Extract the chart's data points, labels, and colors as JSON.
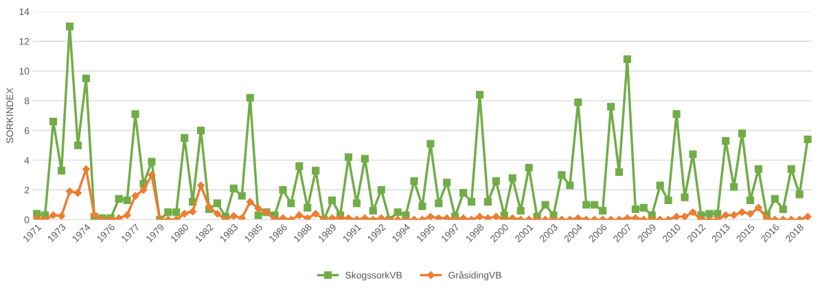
{
  "chart_data": {
    "type": "line",
    "ylabel": "SORKINDEX",
    "categories": [
      "1971",
      null,
      null,
      "1973",
      null,
      null,
      "1974",
      null,
      null,
      "1976",
      null,
      null,
      "1977",
      null,
      null,
      "1979",
      null,
      null,
      "1980",
      null,
      null,
      "1982",
      null,
      null,
      "1983",
      null,
      null,
      "1985",
      null,
      null,
      "1986",
      null,
      null,
      "1988",
      null,
      null,
      "1989",
      null,
      null,
      "1991",
      null,
      null,
      "1992",
      null,
      null,
      "1994",
      null,
      null,
      "1995",
      null,
      null,
      "1997",
      null,
      null,
      "1998",
      null,
      null,
      "2000",
      null,
      null,
      "2001",
      null,
      null,
      "2003",
      null,
      null,
      "2004",
      null,
      null,
      "2006",
      null,
      null,
      "2007",
      null,
      null,
      "2009",
      null,
      null,
      "2010",
      null,
      null,
      "2012",
      null,
      null,
      "2013",
      null,
      null,
      "2015",
      null,
      null,
      "2016",
      null,
      null,
      "2018",
      null
    ],
    "series": [
      {
        "name": "SkogssorkVB",
        "color": "#70ad47",
        "marker": "square",
        "values": [
          0.4,
          0.3,
          6.6,
          3.3,
          13.0,
          5.0,
          9.5,
          0.2,
          0.1,
          0.1,
          1.4,
          1.3,
          7.1,
          2.4,
          3.9,
          0.0,
          0.5,
          0.5,
          5.5,
          1.2,
          6.0,
          0.7,
          1.1,
          0.2,
          2.1,
          1.6,
          8.2,
          0.3,
          0.5,
          0.3,
          2.0,
          1.1,
          3.6,
          0.8,
          3.3,
          0.0,
          1.3,
          0.3,
          4.2,
          1.1,
          4.1,
          0.6,
          2.0,
          0.0,
          0.5,
          0.3,
          2.6,
          0.9,
          5.1,
          1.1,
          2.5,
          0.2,
          1.8,
          1.2,
          8.4,
          1.2,
          2.6,
          0.3,
          2.8,
          0.6,
          3.5,
          0.2,
          1.0,
          0.3,
          3.0,
          2.3,
          7.9,
          1.0,
          1.0,
          0.6,
          7.6,
          3.2,
          10.8,
          0.7,
          0.8,
          0.3,
          2.3,
          1.3,
          7.1,
          1.5,
          4.4,
          0.3,
          0.4,
          0.4,
          5.3,
          2.2,
          5.8,
          1.3,
          3.4,
          0.3,
          1.4,
          0.7,
          3.4,
          1.7,
          5.4
        ]
      },
      {
        "name": "GråsidingVB",
        "color": "#ed7d31",
        "marker": "diamond",
        "values": [
          0.1,
          0.0,
          0.3,
          0.25,
          1.9,
          1.8,
          3.4,
          0.3,
          0.0,
          0.0,
          0.1,
          0.3,
          1.6,
          2.0,
          3.0,
          0.0,
          0.0,
          0.0,
          0.4,
          0.55,
          2.3,
          0.85,
          0.4,
          0.0,
          0.25,
          0.1,
          1.2,
          0.75,
          0.5,
          0.0,
          0.1,
          0.0,
          0.3,
          0.1,
          0.4,
          0.0,
          0.1,
          0.1,
          0.1,
          0.0,
          0.1,
          0.0,
          0.1,
          0.0,
          0.0,
          0.0,
          0.0,
          0.0,
          0.2,
          0.1,
          0.1,
          0.0,
          0.1,
          0.0,
          0.2,
          0.1,
          0.2,
          0.0,
          0.1,
          0.0,
          0.0,
          0.0,
          0.0,
          0.0,
          0.0,
          0.0,
          0.1,
          0.0,
          0.0,
          0.0,
          0.0,
          0.0,
          0.1,
          0.1,
          0.0,
          0.0,
          0.0,
          0.0,
          0.2,
          0.2,
          0.5,
          0.0,
          0.0,
          0.0,
          0.3,
          0.3,
          0.5,
          0.4,
          0.8,
          0.1,
          0.0,
          0.0,
          0.0,
          0.0,
          0.2
        ]
      }
    ],
    "ylim": [
      0,
      14
    ],
    "yticks": [
      0,
      2,
      4,
      6,
      8,
      10,
      12,
      14
    ],
    "grid": "y",
    "legend": "bottom",
    "line_style": "solid"
  }
}
